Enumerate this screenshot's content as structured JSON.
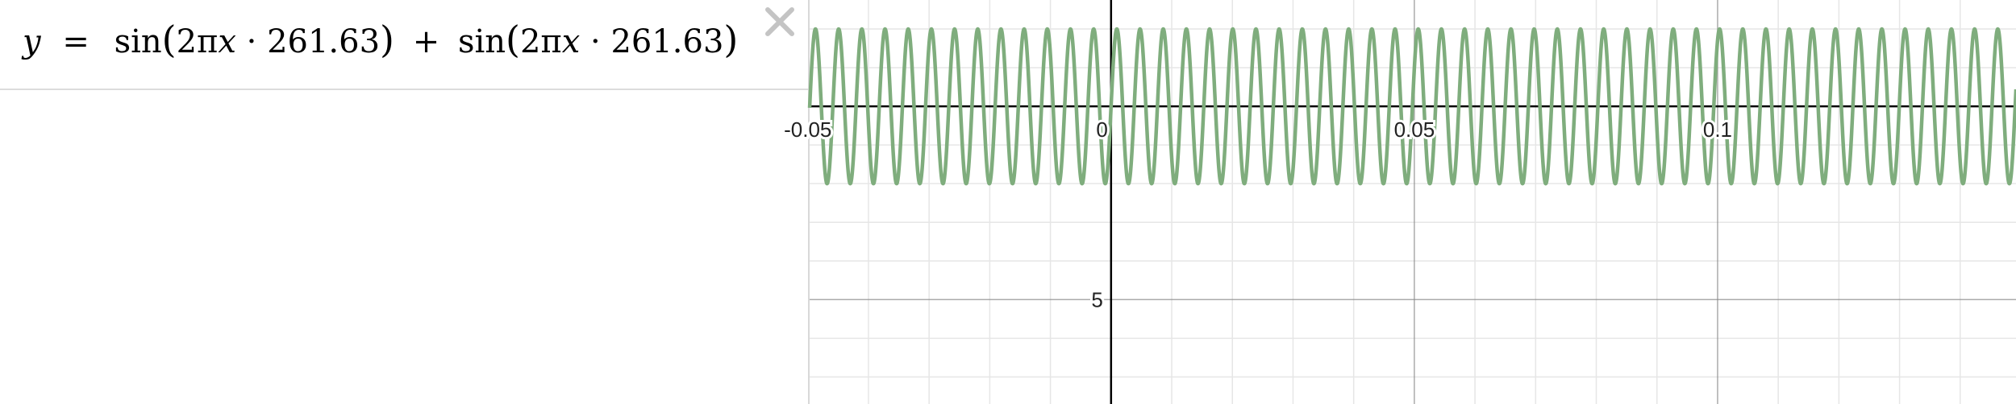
{
  "expression_list": {
    "items": [
      {
        "latex_display": "y =  sin(2πx · 261.63) + sin(2πx · 261.63)",
        "lhs": "y",
        "eq": "=",
        "sin1": "sin",
        "arg1_pre": "2π",
        "arg1_var": "x",
        "arg1_post": " · 261.63",
        "plus": "+",
        "sin2": "sin",
        "arg2_pre": "2π",
        "arg2_var": "x",
        "arg2_post": " · 261.63",
        "curve_color": "#7fad7d"
      }
    ],
    "delete_icon": "close-icon"
  },
  "graph": {
    "x_ticks": [
      "-0.05",
      "0",
      "0.05",
      "0.1"
    ],
    "y_ticks": [
      "5"
    ],
    "grid_color": "#e6e6e6",
    "major_grid_color": "#888888",
    "axis_color": "#000000"
  },
  "chart_data": {
    "type": "line",
    "function": "y = sin(2πx·261.63) + sin(2πx·261.63)",
    "frequency_hz": 261.63,
    "amplitude": 2,
    "xlim": [
      -0.0497,
      0.1492
    ],
    "ylim": [
      -7.7,
      2.75
    ],
    "x_tick_values": [
      -0.05,
      0,
      0.05,
      0.1
    ],
    "y_tick_values": [
      5
    ],
    "grid": true,
    "series": [
      {
        "color": "#7fad7d"
      }
    ]
  }
}
